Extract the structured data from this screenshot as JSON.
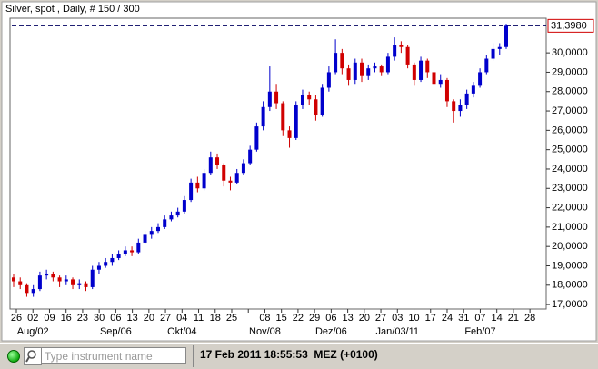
{
  "chart_data": {
    "type": "candlestick",
    "title": "Silver, spot , Daily, # 150 / 300",
    "categories": [
      "26",
      "02",
      "09",
      "16",
      "23",
      "30",
      "06",
      "13",
      "20",
      "27",
      "04",
      "11",
      "18",
      "25",
      null,
      "08",
      "15",
      "22",
      "29",
      "06",
      "13",
      "20",
      "27",
      "03",
      "10",
      "17",
      "24",
      "31",
      "07",
      "14",
      "21",
      "28"
    ],
    "months": [
      "Aug/02",
      "Sep/06",
      "Okt/04",
      "Nov/08",
      "Dez/06",
      "Jan/03/11",
      "Feb/07"
    ],
    "ylim": [
      16.77,
      31.79
    ],
    "yticks": [
      {
        "value": 17,
        "label": "17,0000"
      },
      {
        "value": 18,
        "label": "18,0000"
      },
      {
        "value": 19,
        "label": "19,0000"
      },
      {
        "value": 20,
        "label": "20,0000"
      },
      {
        "value": 21,
        "label": "21,0000"
      },
      {
        "value": 22,
        "label": "22,0000"
      },
      {
        "value": 23,
        "label": "23,0000"
      },
      {
        "value": 24,
        "label": "24,0000"
      },
      {
        "value": 25,
        "label": "25,0000"
      },
      {
        "value": 26,
        "label": "26,0000"
      },
      {
        "value": 27,
        "label": "27,0000"
      },
      {
        "value": 28,
        "label": "28,0000"
      },
      {
        "value": 29,
        "label": "29,0000"
      },
      {
        "value": 30,
        "label": "30,0000"
      }
    ],
    "last_price": {
      "value": 31.398,
      "label": "31,3980"
    },
    "up_color": "#0000cc",
    "down_color": "#d00000",
    "candles": {
      "open": [
        18.4,
        18.2,
        18.0,
        17.6,
        17.8,
        18.5,
        18.6,
        18.4,
        18.2,
        18.3,
        18.0,
        18.1,
        17.9,
        18.8,
        19.0,
        19.2,
        19.4,
        19.6,
        19.8,
        19.7,
        20.2,
        20.6,
        20.8,
        21.0,
        21.4,
        21.6,
        21.8,
        22.4,
        23.3,
        23.0,
        23.8,
        24.6,
        24.2,
        23.4,
        23.3,
        23.8,
        24.3,
        25.0,
        26.2,
        27.2,
        28.0,
        27.4,
        26.0,
        25.6,
        27.3,
        27.8,
        27.6,
        26.8,
        28.2,
        29.0,
        30.0,
        29.2,
        28.6,
        29.5,
        28.8,
        29.2,
        29.3,
        29.0,
        29.8,
        30.4,
        30.3,
        29.4,
        28.6,
        29.6,
        29.0,
        28.4,
        28.6,
        27.5,
        27.0,
        27.3,
        27.9,
        28.3,
        29.0,
        29.7,
        30.2,
        30.3
      ],
      "high": [
        18.6,
        18.4,
        18.1,
        18.0,
        18.7,
        18.8,
        18.7,
        18.5,
        18.5,
        18.4,
        18.3,
        18.2,
        19.0,
        19.2,
        19.4,
        19.6,
        19.8,
        20.0,
        20.0,
        20.4,
        20.8,
        21.0,
        21.2,
        21.6,
        21.8,
        22.0,
        22.6,
        23.5,
        23.6,
        24.0,
        24.9,
        24.8,
        24.3,
        23.6,
        24.0,
        24.5,
        25.2,
        26.4,
        27.5,
        29.3,
        28.4,
        27.5,
        26.2,
        27.5,
        28.1,
        28.0,
        27.8,
        28.4,
        29.3,
        30.7,
        30.2,
        29.4,
        29.7,
        29.7,
        29.4,
        29.5,
        29.4,
        30.0,
        30.8,
        30.6,
        30.4,
        29.5,
        29.8,
        29.7,
        29.1,
        28.9,
        28.7,
        27.6,
        27.6,
        28.1,
        28.5,
        29.2,
        29.9,
        30.5,
        30.5,
        31.5
      ],
      "low": [
        17.9,
        17.8,
        17.4,
        17.4,
        17.7,
        18.3,
        18.2,
        17.9,
        18.0,
        17.8,
        17.8,
        17.7,
        17.8,
        18.6,
        18.9,
        19.0,
        19.3,
        19.5,
        19.5,
        19.6,
        20.1,
        20.4,
        20.7,
        20.9,
        21.3,
        21.5,
        21.7,
        22.3,
        22.8,
        22.9,
        23.7,
        24.0,
        23.1,
        22.9,
        23.2,
        23.7,
        24.2,
        24.9,
        26.0,
        27.0,
        27.1,
        25.7,
        25.1,
        25.5,
        27.1,
        27.3,
        26.5,
        26.7,
        28.0,
        28.9,
        28.9,
        28.3,
        28.4,
        28.5,
        28.6,
        29.0,
        28.8,
        28.9,
        29.6,
        30.0,
        29.2,
        28.3,
        28.5,
        28.7,
        28.1,
        28.2,
        27.2,
        26.4,
        26.7,
        27.1,
        27.7,
        28.2,
        28.9,
        29.6,
        29.9,
        30.2
      ],
      "close": [
        18.2,
        18.0,
        17.6,
        17.8,
        18.5,
        18.6,
        18.4,
        18.2,
        18.3,
        18.0,
        18.1,
        17.9,
        18.8,
        19.0,
        19.2,
        19.4,
        19.6,
        19.8,
        19.7,
        20.2,
        20.6,
        20.8,
        21.0,
        21.4,
        21.6,
        21.8,
        22.4,
        23.3,
        23.0,
        23.8,
        24.6,
        24.2,
        23.4,
        23.3,
        23.8,
        24.3,
        25.0,
        26.2,
        27.2,
        28.0,
        27.4,
        26.0,
        25.6,
        27.3,
        27.8,
        27.6,
        26.8,
        28.2,
        29.0,
        30.0,
        29.2,
        28.6,
        29.5,
        28.8,
        29.2,
        29.3,
        29.0,
        29.8,
        30.4,
        30.3,
        29.4,
        28.6,
        29.6,
        29.0,
        28.4,
        28.6,
        27.5,
        27.0,
        27.3,
        27.9,
        28.3,
        29.0,
        29.7,
        30.2,
        30.3,
        31.398
      ]
    }
  },
  "status_bar": {
    "search_placeholder": "Type instrument name",
    "timestamp": "17 Feb 2011 18:55:53  MEZ (+0100)"
  }
}
